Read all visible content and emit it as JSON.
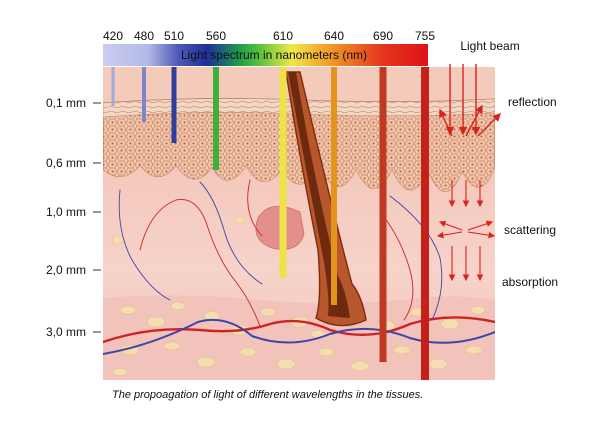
{
  "spectrum": {
    "title": "Light spectrum in nanometers (nm)",
    "wavelengths": [
      {
        "label": "420",
        "color": "#a3a9dc"
      },
      {
        "label": "480",
        "color": "#7f86c8"
      },
      {
        "label": "510",
        "color": "#2f3d9c"
      },
      {
        "label": "560",
        "color": "#3fae3a"
      },
      {
        "label": "610",
        "color": "#ede347"
      },
      {
        "label": "640",
        "color": "#e3941b"
      },
      {
        "label": "690",
        "color": "#c03a22"
      },
      {
        "label": "755",
        "color": "#c4201c"
      }
    ]
  },
  "depth_labels": [
    "0,1 mm",
    "0,6 mm",
    "1,0 mm",
    "2,0 mm",
    "3,0 mm"
  ],
  "legend": {
    "light_beam": "Light beam",
    "reflection": "reflection",
    "scattering": "scattering",
    "absorption": "absorption",
    "arrow_color": "#d9231f"
  },
  "caption": "The propoagation of light of different wavelengths in the tissues.",
  "colors": {
    "dermis": "#f7d0c6",
    "epidermis": "#f3c7b4",
    "cell_border": "#c7906f",
    "fat": "#f5ddb2",
    "hair": "#8e3414",
    "artery": "#cf2224",
    "vein": "#3f45a8"
  }
}
